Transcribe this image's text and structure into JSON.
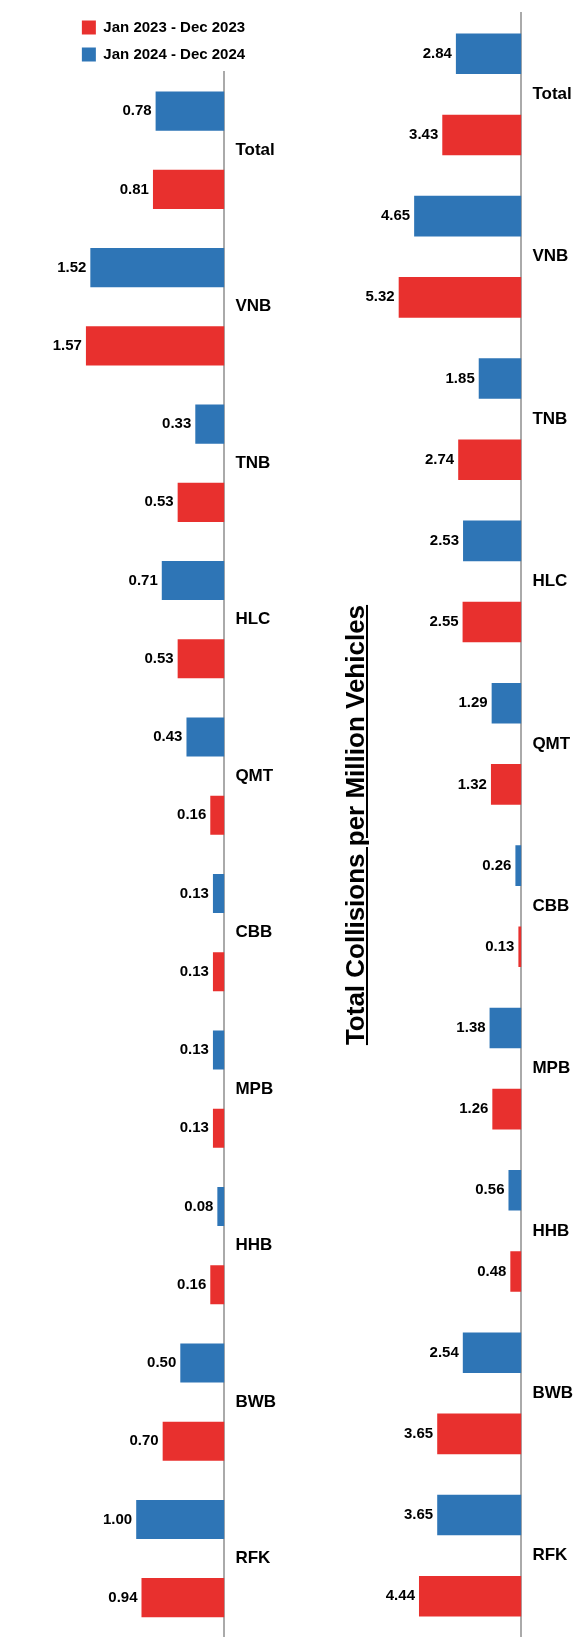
{
  "chart_data": [
    {
      "type": "bar",
      "orientation": "horizontal",
      "categories": [
        "Total",
        "VNB",
        "TNB",
        "HLC",
        "QMT",
        "CBB",
        "MPB",
        "HHB",
        "BWB",
        "RFK"
      ],
      "legend": "top",
      "grid": false,
      "series": [
        {
          "name": "Jan 2023 - Dec 2023",
          "color": "#e8302e",
          "values": [
            0.81,
            1.57,
            0.53,
            0.53,
            0.16,
            0.13,
            0.13,
            0.16,
            0.7,
            0.94
          ],
          "value_labels": [
            "0.81",
            "1.57",
            "0.53",
            "0.53",
            "0.16",
            "0.13",
            "0.13",
            "0.16",
            "0.70",
            "0.94"
          ]
        },
        {
          "name": "Jan 2024 - Dec 2024",
          "color": "#2e75b6",
          "values": [
            0.78,
            1.52,
            0.33,
            0.71,
            0.43,
            0.13,
            0.13,
            0.08,
            0.5,
            1.0
          ],
          "value_labels": [
            "0.78",
            "1.52",
            "0.33",
            "0.71",
            "0.43",
            "0.13",
            "0.13",
            "0.08",
            "0.50",
            "1.00"
          ]
        }
      ]
    },
    {
      "type": "bar",
      "orientation": "horizontal",
      "title": "Total Collisions per Million Vehicles",
      "categories": [
        "Total",
        "VNB",
        "TNB",
        "HLC",
        "QMT",
        "CBB",
        "MPB",
        "HHB",
        "BWB",
        "RFK"
      ],
      "legend": false,
      "grid": false,
      "series": [
        {
          "color": "#e8302e",
          "values": [
            3.43,
            5.32,
            2.74,
            2.55,
            1.32,
            0.13,
            1.26,
            0.48,
            3.65,
            4.44
          ],
          "value_labels": [
            "3.43",
            "5.32",
            "2.74",
            "2.55",
            "1.32",
            "0.13",
            "1.26",
            "0.48",
            "3.65",
            "4.44"
          ]
        },
        {
          "color": "#2e75b6",
          "values": [
            2.84,
            4.65,
            1.85,
            2.53,
            1.29,
            0.26,
            1.38,
            0.56,
            2.54,
            3.65
          ],
          "value_labels": [
            "2.84",
            "4.65",
            "1.85",
            "2.53",
            "1.29",
            "0.26",
            "1.38",
            "0.56",
            "2.54",
            "3.65"
          ]
        }
      ]
    }
  ]
}
